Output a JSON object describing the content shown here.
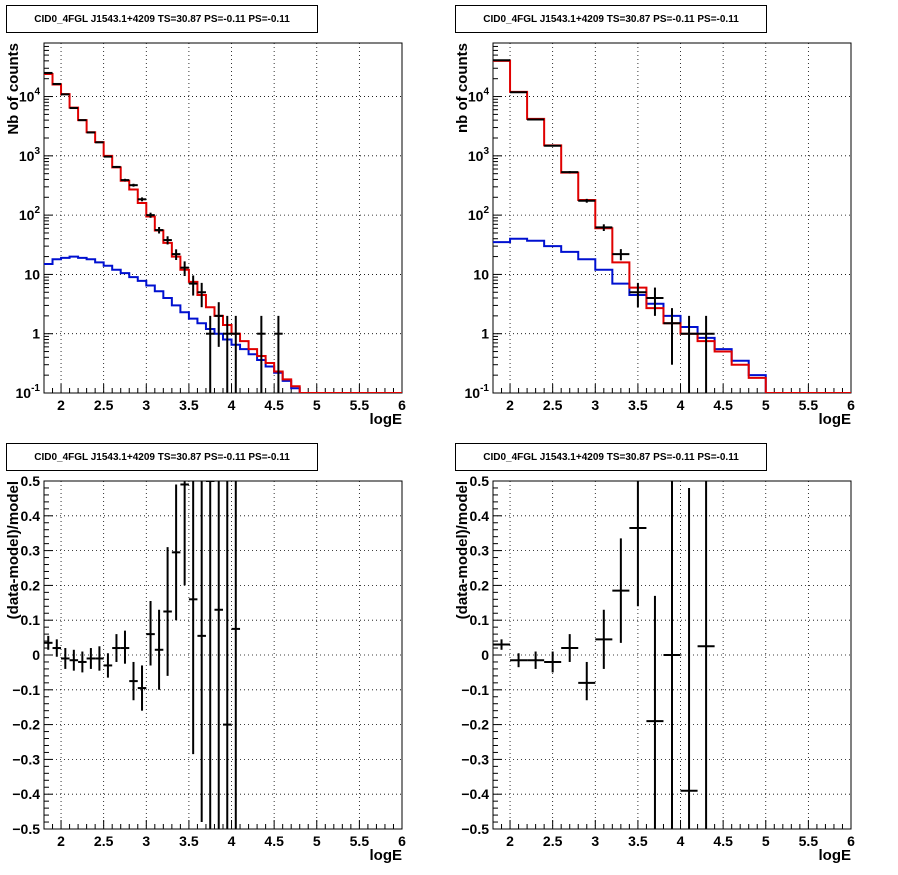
{
  "panels": {
    "top_left": {
      "title": "CID0_4FGL J1543.1+4209 TS=30.87 PS=-0.11 PS=-0.11"
    },
    "top_right": {
      "title": "CID0_4FGL J1543.1+4209 TS=30.87 PS=-0.11 PS=-0.11"
    },
    "bottom_left": {
      "title": "CID0_4FGL J1543.1+4209 TS=30.87 PS=-0.11 PS=-0.11"
    },
    "bottom_right": {
      "title": "CID0_4FGL J1543.1+4209 TS=30.87 PS=-0.11 PS=-0.11"
    }
  },
  "colors": {
    "total_model": "#e00000",
    "source_model": "#0010d0",
    "data": "#000000",
    "grid": "#000000"
  },
  "chart_data": [
    {
      "id": "top_left",
      "type": "line",
      "subtype": "histogram",
      "title": "CID0_4FGL J1543.1+4209 TS=30.87 PS=-0.11 PS=-0.11",
      "xlabel": "logE",
      "ylabel": "Nb of counts",
      "xlim": [
        1.8,
        6.0
      ],
      "ylim": [
        0.1,
        80000
      ],
      "yscale": "log",
      "grid": true,
      "xticks": [
        "2",
        "2.5",
        "3",
        "3.5",
        "4",
        "4.5",
        "5",
        "5.5",
        "6"
      ],
      "yticks": [
        "10^-1",
        "1",
        "10",
        "10^2",
        "10^3",
        "10^4"
      ],
      "bin_edges": [
        1.8,
        1.9,
        2.0,
        2.1,
        2.2,
        2.3,
        2.4,
        2.5,
        2.6,
        2.7,
        2.8,
        2.9,
        3.0,
        3.1,
        3.2,
        3.3,
        3.4,
        3.5,
        3.6,
        3.7,
        3.8,
        3.9,
        4.0,
        4.1,
        4.2,
        4.3,
        4.4,
        4.5,
        4.6,
        4.7,
        4.8,
        4.9,
        5.0,
        5.1,
        5.2,
        5.3,
        5.4,
        5.5,
        5.6,
        5.7,
        5.8,
        5.9,
        6.0
      ],
      "series": [
        {
          "name": "",
          "color": "#e00000",
          "values": [
            24000,
            16000,
            11000,
            6500,
            4000,
            2500,
            1700,
            1000,
            640,
            380,
            270,
            160,
            95,
            55,
            34,
            20,
            12,
            7.5,
            4.5,
            2.8,
            2.0,
            1.4,
            1.0,
            0.75,
            0.55,
            0.42,
            0.32,
            0.23,
            0.17,
            0.13,
            0.1,
            0.1,
            0.1,
            0.1,
            0.1,
            0.1,
            0.1,
            0.1,
            0.1,
            0.1,
            0.1,
            0.1
          ]
        },
        {
          "name": "",
          "color": "#0010d0",
          "values": [
            15,
            18,
            19,
            20,
            19,
            18,
            16,
            14,
            12,
            10.5,
            9,
            7.8,
            6.5,
            5.2,
            4.0,
            3.0,
            2.3,
            1.8,
            1.5,
            1.2,
            1.0,
            0.8,
            0.65,
            0.55,
            0.45,
            0.36,
            0.28,
            0.22,
            0.16,
            0.12,
            0.1,
            0.1,
            0.1,
            0.1,
            0.1,
            0.1,
            0.1,
            0.1,
            0.1,
            0.1,
            0.1,
            0.1
          ]
        }
      ],
      "points": [
        {
          "x": 1.85,
          "xerr": 0.05,
          "y": 25000,
          "ylo": 24800,
          "yhi": 25200
        },
        {
          "x": 1.95,
          "xerr": 0.05,
          "y": 16300,
          "ylo": 16100,
          "yhi": 16500
        },
        {
          "x": 2.05,
          "xerr": 0.05,
          "y": 10900,
          "ylo": 10800,
          "yhi": 11000
        },
        {
          "x": 2.15,
          "xerr": 0.05,
          "y": 6400,
          "ylo": 6320,
          "yhi": 6480
        },
        {
          "x": 2.25,
          "xerr": 0.05,
          "y": 4000,
          "ylo": 3940,
          "yhi": 4060
        },
        {
          "x": 2.35,
          "xerr": 0.05,
          "y": 2480,
          "ylo": 2430,
          "yhi": 2530
        },
        {
          "x": 2.45,
          "xerr": 0.05,
          "y": 1690,
          "ylo": 1650,
          "yhi": 1730
        },
        {
          "x": 2.55,
          "xerr": 0.05,
          "y": 970,
          "ylo": 940,
          "yhi": 1000
        },
        {
          "x": 2.65,
          "xerr": 0.05,
          "y": 650,
          "ylo": 625,
          "yhi": 675
        },
        {
          "x": 2.75,
          "xerr": 0.05,
          "y": 390,
          "ylo": 370,
          "yhi": 410
        },
        {
          "x": 2.85,
          "xerr": 0.05,
          "y": 320,
          "ylo": 302,
          "yhi": 338
        },
        {
          "x": 2.95,
          "xerr": 0.05,
          "y": 185,
          "ylo": 171,
          "yhi": 199
        },
        {
          "x": 3.05,
          "xerr": 0.05,
          "y": 100,
          "ylo": 90,
          "yhi": 110
        },
        {
          "x": 3.15,
          "xerr": 0.05,
          "y": 56,
          "ylo": 49,
          "yhi": 63
        },
        {
          "x": 3.25,
          "xerr": 0.05,
          "y": 38,
          "ylo": 32,
          "yhi": 44
        },
        {
          "x": 3.35,
          "xerr": 0.05,
          "y": 22,
          "ylo": 17.5,
          "yhi": 26.5
        },
        {
          "x": 3.45,
          "xerr": 0.05,
          "y": 13,
          "ylo": 9.4,
          "yhi": 16.6
        },
        {
          "x": 3.55,
          "xerr": 0.05,
          "y": 7,
          "ylo": 4.4,
          "yhi": 9.6
        },
        {
          "x": 3.65,
          "xerr": 0.05,
          "y": 5,
          "ylo": 2.8,
          "yhi": 7.2
        },
        {
          "x": 3.75,
          "xerr": 0.05,
          "y": 1,
          "ylo": 0.1,
          "yhi": 2.0
        },
        {
          "x": 3.85,
          "xerr": 0.05,
          "y": 2,
          "ylo": 0.6,
          "yhi": 3.4
        },
        {
          "x": 3.95,
          "xerr": 0.05,
          "y": 1,
          "ylo": 0.1,
          "yhi": 2.0
        },
        {
          "x": 4.05,
          "xerr": 0.05,
          "y": 1,
          "ylo": 0.1,
          "yhi": 2.0
        },
        {
          "x": 4.35,
          "xerr": 0.05,
          "y": 1,
          "ylo": 0.1,
          "yhi": 2.0
        },
        {
          "x": 4.55,
          "xerr": 0.05,
          "y": 1,
          "ylo": 0.1,
          "yhi": 2.0
        }
      ]
    },
    {
      "id": "top_right",
      "type": "line",
      "subtype": "histogram",
      "title": "CID0_4FGL J1543.1+4209 TS=30.87 PS=-0.11 PS=-0.11",
      "xlabel": "logE",
      "ylabel": "nb of counts",
      "xlim": [
        1.8,
        6.0
      ],
      "ylim": [
        0.1,
        80000
      ],
      "yscale": "log",
      "grid": true,
      "xticks": [
        "2",
        "2.5",
        "3",
        "3.5",
        "4",
        "4.5",
        "5",
        "5.5",
        "6"
      ],
      "yticks": [
        "10^-1",
        "1",
        "10",
        "10^2",
        "10^3",
        "10^4"
      ],
      "bin_edges": [
        1.8,
        2.0,
        2.2,
        2.4,
        2.6,
        2.8,
        3.0,
        3.2,
        3.4,
        3.6,
        3.8,
        4.0,
        4.2,
        4.4,
        4.6,
        4.8,
        5.0,
        5.2,
        5.4,
        5.6,
        5.8,
        6.0
      ],
      "series": [
        {
          "name": "",
          "color": "#e00000",
          "values": [
            40000,
            12000,
            4200,
            1500,
            520,
            180,
            60,
            16,
            6,
            2.7,
            1.5,
            1.0,
            0.75,
            0.5,
            0.3,
            0.18,
            0.1,
            0.1,
            0.1,
            0.1,
            0.1
          ]
        },
        {
          "name": "",
          "color": "#0010d0",
          "values": [
            35,
            40,
            37,
            30,
            24,
            18,
            12,
            7,
            4.5,
            3.2,
            2.0,
            1.3,
            0.85,
            0.55,
            0.35,
            0.2,
            0.1,
            0.1,
            0.1,
            0.1,
            0.1
          ]
        }
      ],
      "points": [
        {
          "x": 1.9,
          "xerr": 0.1,
          "y": 41000,
          "ylo": 40800,
          "yhi": 41200
        },
        {
          "x": 2.1,
          "xerr": 0.1,
          "y": 11800,
          "ylo": 11700,
          "yhi": 11900
        },
        {
          "x": 2.3,
          "xerr": 0.1,
          "y": 4100,
          "ylo": 4040,
          "yhi": 4160
        },
        {
          "x": 2.5,
          "xerr": 0.1,
          "y": 1480,
          "ylo": 1440,
          "yhi": 1520
        },
        {
          "x": 2.7,
          "xerr": 0.1,
          "y": 530,
          "ylo": 507,
          "yhi": 553
        },
        {
          "x": 2.9,
          "xerr": 0.1,
          "y": 175,
          "ylo": 162,
          "yhi": 188
        },
        {
          "x": 3.1,
          "xerr": 0.1,
          "y": 62,
          "ylo": 54,
          "yhi": 70
        },
        {
          "x": 3.3,
          "xerr": 0.1,
          "y": 22,
          "ylo": 17.3,
          "yhi": 26.7
        },
        {
          "x": 3.5,
          "xerr": 0.1,
          "y": 5,
          "ylo": 2.8,
          "yhi": 7.2
        },
        {
          "x": 3.7,
          "xerr": 0.1,
          "y": 4,
          "ylo": 2.0,
          "yhi": 6.0
        },
        {
          "x": 3.9,
          "xerr": 0.1,
          "y": 1.5,
          "ylo": 0.3,
          "yhi": 2.7
        },
        {
          "x": 4.1,
          "xerr": 0.1,
          "y": 1,
          "ylo": 0.1,
          "yhi": 2.0
        },
        {
          "x": 4.3,
          "xerr": 0.1,
          "y": 1,
          "ylo": 0.1,
          "yhi": 2.0
        }
      ]
    },
    {
      "id": "bottom_left",
      "type": "scatter",
      "subtype": "error-bars",
      "title": "CID0_4FGL J1543.1+4209 TS=30.87 PS=-0.11 PS=-0.11",
      "xlabel": "logE",
      "ylabel": "(data-model)/model",
      "xlim": [
        1.8,
        6.0
      ],
      "ylim": [
        -0.5,
        0.5
      ],
      "grid": true,
      "xticks": [
        "2",
        "2.5",
        "3",
        "3.5",
        "4",
        "4.5",
        "5",
        "5.5",
        "6"
      ],
      "yticks": [
        "-0.5",
        "-0.4",
        "-0.3",
        "-0.2",
        "-0.1",
        "0",
        "0.1",
        "0.2",
        "0.3",
        "0.4",
        "0.5"
      ],
      "points": [
        {
          "x": 1.85,
          "xerr": 0.05,
          "y": 0.035,
          "ylo": 0.015,
          "yhi": 0.055
        },
        {
          "x": 1.95,
          "xerr": 0.05,
          "y": 0.02,
          "ylo": -0.005,
          "yhi": 0.045
        },
        {
          "x": 2.05,
          "xerr": 0.05,
          "y": -0.01,
          "ylo": -0.04,
          "yhi": 0.02
        },
        {
          "x": 2.15,
          "xerr": 0.05,
          "y": -0.015,
          "ylo": -0.045,
          "yhi": 0.015
        },
        {
          "x": 2.25,
          "xerr": 0.05,
          "y": -0.02,
          "ylo": -0.05,
          "yhi": 0.01
        },
        {
          "x": 2.35,
          "xerr": 0.05,
          "y": -0.01,
          "ylo": -0.04,
          "yhi": 0.02
        },
        {
          "x": 2.45,
          "xerr": 0.05,
          "y": -0.01,
          "ylo": -0.045,
          "yhi": 0.025
        },
        {
          "x": 2.55,
          "xerr": 0.05,
          "y": -0.03,
          "ylo": -0.065,
          "yhi": 0.005
        },
        {
          "x": 2.65,
          "xerr": 0.05,
          "y": 0.02,
          "ylo": -0.02,
          "yhi": 0.06
        },
        {
          "x": 2.75,
          "xerr": 0.05,
          "y": 0.02,
          "ylo": -0.025,
          "yhi": 0.07
        },
        {
          "x": 2.85,
          "xerr": 0.05,
          "y": -0.075,
          "ylo": -0.13,
          "yhi": -0.02
        },
        {
          "x": 2.95,
          "xerr": 0.05,
          "y": -0.095,
          "ylo": -0.16,
          "yhi": -0.03
        },
        {
          "x": 3.05,
          "xerr": 0.05,
          "y": 0.06,
          "ylo": -0.03,
          "yhi": 0.155
        },
        {
          "x": 3.15,
          "xerr": 0.05,
          "y": 0.015,
          "ylo": -0.1,
          "yhi": 0.13
        },
        {
          "x": 3.25,
          "xerr": 0.05,
          "y": 0.125,
          "ylo": -0.06,
          "yhi": 0.31
        },
        {
          "x": 3.35,
          "xerr": 0.05,
          "y": 0.295,
          "ylo": 0.1,
          "yhi": 0.49
        },
        {
          "x": 3.45,
          "xerr": 0.05,
          "y": 0.49,
          "ylo": 0.2,
          "yhi": 0.5
        },
        {
          "x": 3.55,
          "xerr": 0.05,
          "y": 0.16,
          "ylo": -0.285,
          "yhi": 0.5
        },
        {
          "x": 3.65,
          "xerr": 0.05,
          "y": 0.055,
          "ylo": -0.48,
          "yhi": 0.5
        },
        {
          "x": 3.75,
          "xerr": 0.05,
          "y": 0.5,
          "ylo": -0.5,
          "yhi": 0.5
        },
        {
          "x": 3.85,
          "xerr": 0.05,
          "y": 0.13,
          "ylo": -0.5,
          "yhi": 0.5
        },
        {
          "x": 3.95,
          "xerr": 0.05,
          "y": -0.2,
          "ylo": -0.5,
          "yhi": 0.5
        },
        {
          "x": 4.05,
          "xerr": 0.05,
          "y": 0.075,
          "ylo": -0.5,
          "yhi": 0.5
        }
      ]
    },
    {
      "id": "bottom_right",
      "type": "scatter",
      "subtype": "error-bars",
      "title": "CID0_4FGL J1543.1+4209 TS=30.87 PS=-0.11 PS=-0.11",
      "xlabel": "logE",
      "ylabel": "(data-model)/model",
      "xlim": [
        1.8,
        6.0
      ],
      "ylim": [
        -0.5,
        0.5
      ],
      "grid": true,
      "xticks": [
        "2",
        "2.5",
        "3",
        "3.5",
        "4",
        "4.5",
        "5",
        "5.5",
        "6"
      ],
      "yticks": [
        "-0.5",
        "-0.4",
        "-0.3",
        "-0.2",
        "-0.1",
        "0",
        "0.1",
        "0.2",
        "0.3",
        "0.4",
        "0.5"
      ],
      "points": [
        {
          "x": 1.9,
          "xerr": 0.1,
          "y": 0.03,
          "ylo": 0.015,
          "yhi": 0.045
        },
        {
          "x": 2.1,
          "xerr": 0.1,
          "y": -0.015,
          "ylo": -0.035,
          "yhi": 0.005
        },
        {
          "x": 2.3,
          "xerr": 0.1,
          "y": -0.015,
          "ylo": -0.04,
          "yhi": 0.01
        },
        {
          "x": 2.5,
          "xerr": 0.1,
          "y": -0.02,
          "ylo": -0.05,
          "yhi": 0.01
        },
        {
          "x": 2.7,
          "xerr": 0.1,
          "y": 0.02,
          "ylo": -0.02,
          "yhi": 0.06
        },
        {
          "x": 2.9,
          "xerr": 0.1,
          "y": -0.08,
          "ylo": -0.13,
          "yhi": -0.02
        },
        {
          "x": 3.1,
          "xerr": 0.1,
          "y": 0.045,
          "ylo": -0.04,
          "yhi": 0.13
        },
        {
          "x": 3.3,
          "xerr": 0.1,
          "y": 0.185,
          "ylo": 0.035,
          "yhi": 0.335
        },
        {
          "x": 3.5,
          "xerr": 0.1,
          "y": 0.365,
          "ylo": 0.14,
          "yhi": 0.5
        },
        {
          "x": 3.7,
          "xerr": 0.1,
          "y": -0.19,
          "ylo": -0.5,
          "yhi": 0.17
        },
        {
          "x": 3.9,
          "xerr": 0.1,
          "y": 0.0,
          "ylo": -0.5,
          "yhi": 0.5
        },
        {
          "x": 4.1,
          "xerr": 0.1,
          "y": -0.39,
          "ylo": -0.5,
          "yhi": 0.48
        },
        {
          "x": 4.3,
          "xerr": 0.1,
          "y": 0.025,
          "ylo": -0.5,
          "yhi": 0.5
        }
      ]
    }
  ]
}
